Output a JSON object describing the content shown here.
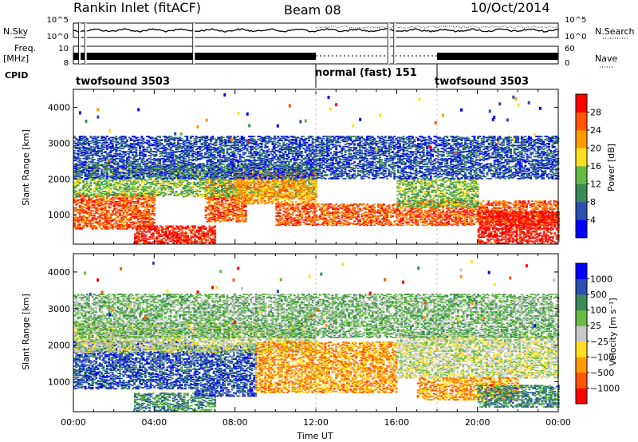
{
  "header": {
    "station": "Rankin Inlet (fitACF)",
    "beam": "Beam 08",
    "date": "10/Oct/2014"
  },
  "status": {
    "nsky_label": "N.Sky",
    "freq_label": "Freq.",
    "freq_unit": "[MHz]",
    "cpid_label": "CPID",
    "nsearch_label": "N.Search",
    "nave_label": "Nave",
    "nsky_ticks": [
      "10^5",
      "10^0"
    ],
    "nsearch_ticks": [
      "10^5",
      "10^0"
    ],
    "freq_ticks": [
      "10",
      "8"
    ],
    "nave_ticks": [
      "60",
      "0"
    ],
    "modes": [
      {
        "name": "twofsound 3503",
        "start_h": 0,
        "end_h": 12
      },
      {
        "name": "normal (fast) 151",
        "start_h": 12,
        "end_h": 18
      },
      {
        "name": "twofsound 3503",
        "start_h": 18,
        "end_h": 24
      }
    ],
    "gaps_h": [
      0.3,
      0.6,
      5.95,
      15.6,
      15.9
    ]
  },
  "chart_data": [
    {
      "type": "heatmap",
      "name": "power",
      "ylabel": "Slant Range [km]",
      "colorbar_label": "Power [dB]",
      "colorbar_ticks": [
        "28",
        "24",
        "20",
        "16",
        "12",
        "8",
        "4"
      ],
      "colors": [
        "#0000ff",
        "#2a4fb0",
        "#3b8a5a",
        "#66bb44",
        "#ffe020",
        "#ff9a00",
        "#ff5500",
        "#ff0000"
      ],
      "xlim": [
        0,
        24
      ],
      "ylim": [
        180,
        4500
      ],
      "yticks": [
        1000,
        2000,
        3000,
        4000
      ],
      "bands": [
        {
          "t": [
            0,
            4
          ],
          "r": [
            600,
            1600
          ],
          "level": 6
        },
        {
          "t": [
            3,
            7
          ],
          "r": [
            200,
            700
          ],
          "level": 7
        },
        {
          "t": [
            6.5,
            8.5
          ],
          "r": [
            800,
            2000
          ],
          "level": 6
        },
        {
          "t": [
            0,
            12
          ],
          "r": [
            1500,
            2400
          ],
          "level": 3
        },
        {
          "t": [
            8,
            12
          ],
          "r": [
            1300,
            2200
          ],
          "level": 5
        },
        {
          "t": [
            10,
            16
          ],
          "r": [
            700,
            1300
          ],
          "level": 6
        },
        {
          "t": [
            16,
            24
          ],
          "r": [
            700,
            1400
          ],
          "level": 6
        },
        {
          "t": [
            16,
            20
          ],
          "r": [
            1200,
            2000
          ],
          "level": 3
        },
        {
          "t": [
            20,
            24
          ],
          "r": [
            200,
            1100
          ],
          "level": 7
        },
        {
          "t": [
            0,
            24
          ],
          "r": [
            2000,
            3200
          ],
          "level": 1
        }
      ]
    },
    {
      "type": "heatmap",
      "name": "velocity",
      "ylabel": "Slant Range [km]",
      "colorbar_label": "Velocity [m s⁻¹]",
      "colorbar_ticks": [
        "1000",
        "500",
        "100",
        "25",
        "−25",
        "−100",
        "−500",
        "−1000"
      ],
      "colors": [
        "#ff0000",
        "#ff5500",
        "#ff9a00",
        "#ffe020",
        "#c8c8c8",
        "#66bb44",
        "#3b8a5a",
        "#2a4fb0",
        "#0000ff"
      ],
      "xlim": [
        0,
        24
      ],
      "ylim": [
        180,
        4500
      ],
      "yticks": [
        1000,
        2000,
        3000,
        4000
      ],
      "bands": [
        {
          "t": [
            0,
            6
          ],
          "r": [
            800,
            2100
          ],
          "level": 7
        },
        {
          "t": [
            3,
            7
          ],
          "r": [
            200,
            700
          ],
          "level": 6
        },
        {
          "t": [
            6,
            9
          ],
          "r": [
            600,
            2000
          ],
          "level": 7
        },
        {
          "t": [
            0,
            12
          ],
          "r": [
            1800,
            2600
          ],
          "level": 4
        },
        {
          "t": [
            9,
            16
          ],
          "r": [
            700,
            2100
          ],
          "level": 2
        },
        {
          "t": [
            16,
            24
          ],
          "r": [
            1100,
            2300
          ],
          "level": 4
        },
        {
          "t": [
            17,
            22
          ],
          "r": [
            500,
            1100
          ],
          "level": 2
        },
        {
          "t": [
            20,
            24
          ],
          "r": [
            300,
            900
          ],
          "level": 6
        },
        {
          "t": [
            0,
            24
          ],
          "r": [
            2200,
            3400
          ],
          "level": 5
        }
      ]
    }
  ],
  "xaxis": {
    "ticks": [
      "00:00",
      "04:00",
      "08:00",
      "12:00",
      "16:00",
      "20:00",
      "00:00"
    ],
    "label": "Time UT"
  }
}
